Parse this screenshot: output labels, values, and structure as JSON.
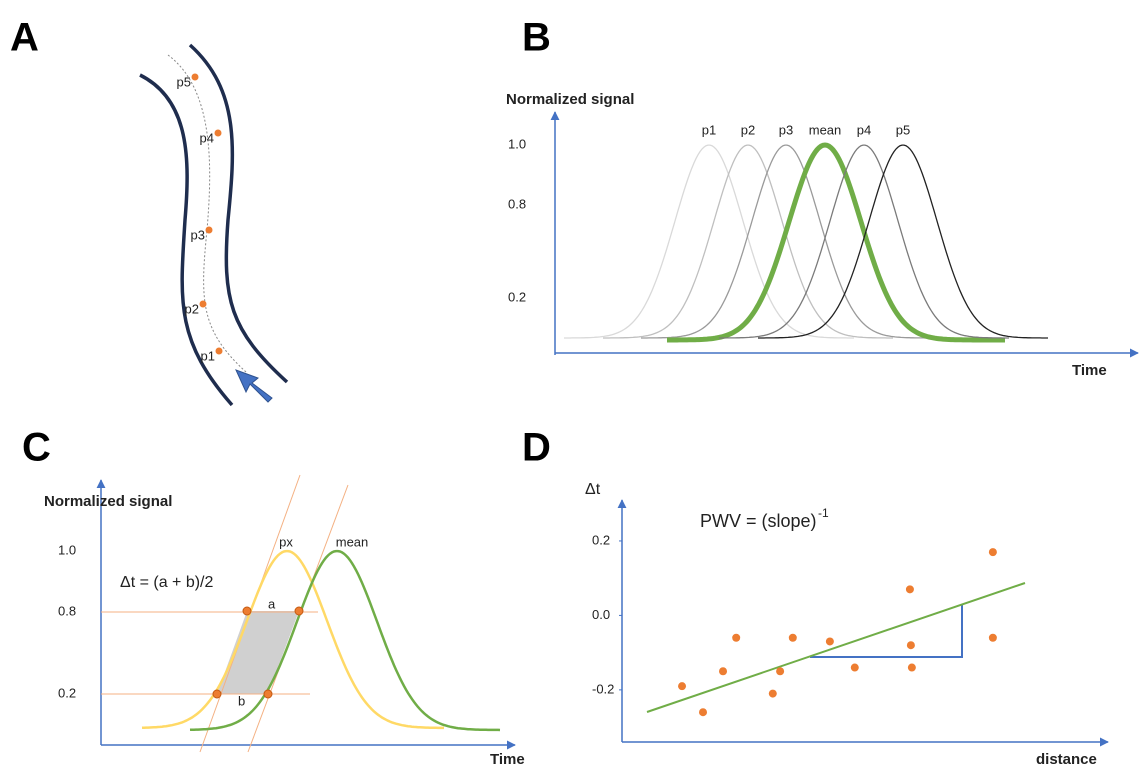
{
  "panels": {
    "A": {
      "letter": "A",
      "points": [
        "p5",
        "p4",
        "p3",
        "p2",
        "p1"
      ]
    },
    "B": {
      "letter": "B",
      "y_label": "Normalized signal",
      "x_label": "Time",
      "ticks": [
        "1.0",
        "0.8",
        "0.2"
      ],
      "curves": [
        "p1",
        "p2",
        "p3",
        "mean",
        "p4",
        "p5"
      ]
    },
    "C": {
      "letter": "C",
      "y_label": "Normalized signal",
      "x_label": "Time",
      "ticks": [
        "1.0",
        "0.8",
        "0.2"
      ],
      "formula": "Δt = (a + b)/2",
      "curves": [
        "px",
        "mean"
      ],
      "a": "a",
      "b": "b"
    },
    "D": {
      "letter": "D"
    }
  },
  "chart_data": {
    "type": "scatter",
    "title": "PWV = (slope)",
    "title_sup": "-1",
    "y_label": "Δt",
    "x_label": "distance",
    "color": "#ed7d31",
    "line_color": "#70ad47",
    "x": [
      1.23,
      1.66,
      2.07,
      2.34,
      3.09,
      3.24,
      3.5,
      4.26,
      4.77,
      5.9,
      5.92,
      5.94,
      7.6,
      7.6
    ],
    "values": [
      -0.19,
      -0.26,
      -0.15,
      -0.06,
      -0.21,
      -0.15,
      -0.06,
      -0.07,
      -0.14,
      0.07,
      -0.08,
      -0.14,
      0.17,
      -0.06
    ],
    "xlim": [
      0,
      10
    ],
    "ylim": [
      -0.34,
      0.31
    ],
    "yticks": [
      0.2,
      {
        "value": 0,
        "label": "0.0"
      },
      -0.2
    ]
  }
}
